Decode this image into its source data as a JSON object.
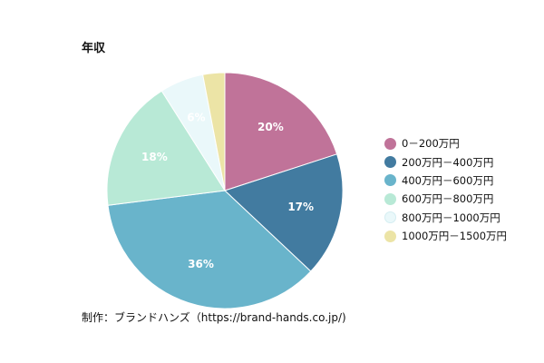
{
  "chart_data": {
    "type": "pie",
    "title": "年収",
    "categories": [
      "0－200万円",
      "200万円－400万円",
      "400万円－600万円",
      "600万円－800万円",
      "800万円－1000万円",
      "1000万円－1500万円"
    ],
    "values": [
      20,
      17,
      36,
      18,
      6,
      3
    ],
    "data_labels": [
      "20%",
      "17%",
      "36%",
      "18%",
      "6%",
      ""
    ],
    "colors": [
      "#c07399",
      "#427ba0",
      "#69b4cb",
      "#b8e9d6",
      "#eaf8fa",
      "#ece4a6"
    ],
    "start_angle_deg": 0,
    "direction": "clockwise",
    "legend_position": "right"
  },
  "credit": "制作：ブランドハンズ（https://brand-hands.co.jp/)"
}
